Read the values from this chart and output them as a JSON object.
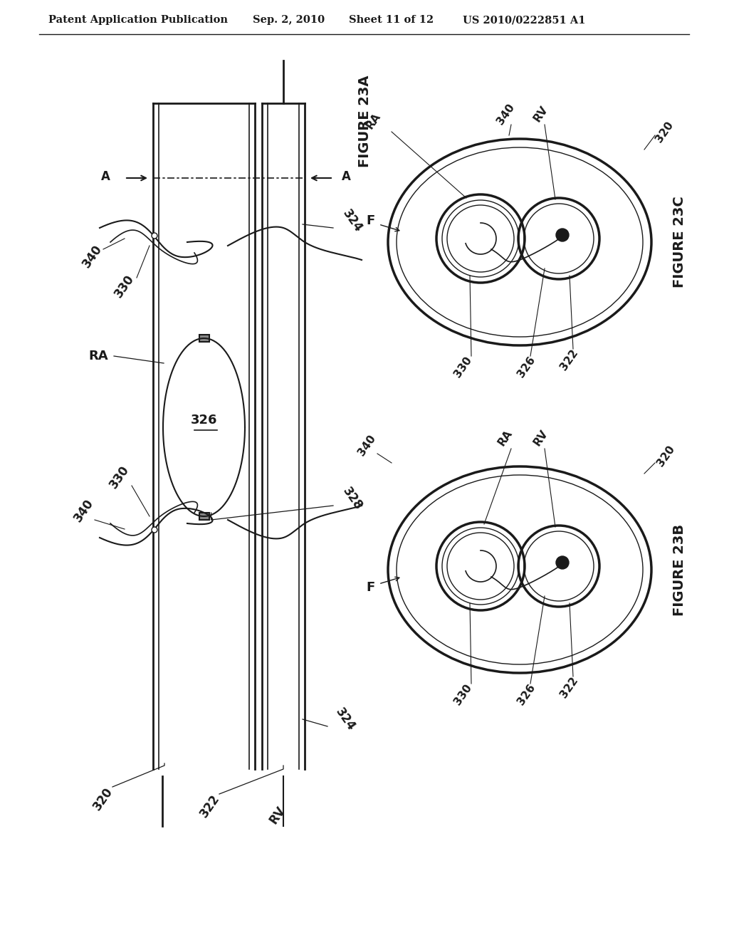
{
  "bg_color": "#ffffff",
  "line_color": "#1a1a1a",
  "header_text": "Patent Application Publication",
  "header_date": "Sep. 2, 2010",
  "header_sheet": "Sheet 11 of 12",
  "header_patent": "US 2010/0222851 A1",
  "fig23a_label": "FIGURE 23A",
  "fig23b_label": "FIGURE 23B",
  "fig23c_label": "FIGURE 23C"
}
